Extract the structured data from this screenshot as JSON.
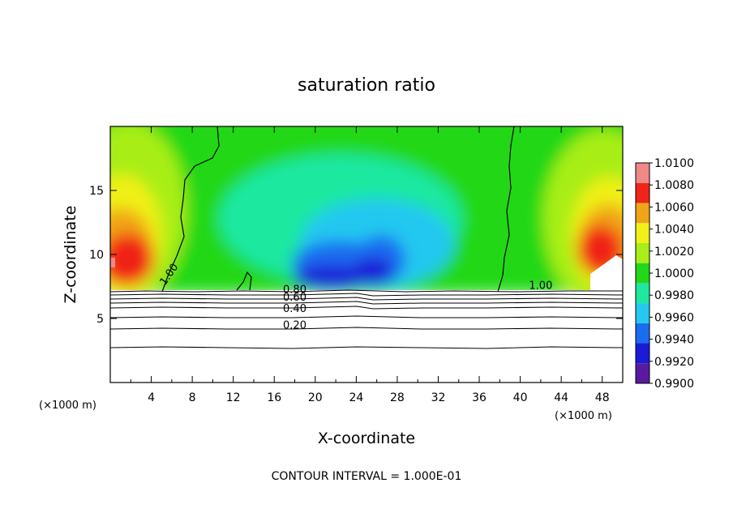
{
  "chart_data": {
    "type": "heatmap",
    "title": "saturation ratio",
    "xlabel": "X-coordinate",
    "ylabel": "Z-coordinate",
    "x_unit_left": "(×1000 m)",
    "x_unit_right": "(×1000 m)",
    "xlim": [
      0,
      50
    ],
    "ylim": [
      0,
      20
    ],
    "x_ticks": [
      4,
      8,
      12,
      16,
      20,
      24,
      28,
      32,
      36,
      40,
      44,
      48
    ],
    "x_tick_labels": [
      "4",
      "8",
      "12",
      "16",
      "20",
      "24",
      "28",
      "32",
      "36",
      "40",
      "44",
      "48"
    ],
    "y_ticks": [
      5,
      10,
      15
    ],
    "y_tick_labels": [
      "5",
      "10",
      "15"
    ],
    "colorbar": {
      "levels": [
        0.99,
        0.992,
        0.994,
        0.996,
        0.998,
        1.0,
        1.002,
        1.004,
        1.006,
        1.008,
        1.01
      ],
      "labels": [
        "0.9900",
        "0.9920",
        "0.9940",
        "0.9960",
        "0.9980",
        "1.0000",
        "1.0020",
        "1.0040",
        "1.0060",
        "1.0080",
        "1.0100"
      ],
      "colors": [
        "#5a1aa0",
        "#1a1ad8",
        "#1a6cf0",
        "#24c8f0",
        "#1ee8a0",
        "#22d818",
        "#a8ee18",
        "#f0f018",
        "#f0a418",
        "#f02418",
        "#f08888"
      ]
    },
    "contour_labels": [
      {
        "text": "1.00",
        "x": 6.0,
        "z": 8.3
      },
      {
        "text": "1.00",
        "x": 42.0,
        "z": 7.3
      },
      {
        "text": "0.80",
        "x": 18.0,
        "z": 7.0
      },
      {
        "text": "0.60",
        "x": 18.0,
        "z": 6.4
      },
      {
        "text": "0.40",
        "x": 18.0,
        "z": 5.5
      },
      {
        "text": "0.20",
        "x": 18.0,
        "z": 4.2
      }
    ],
    "contour_interval_text": "CONTOUR INTERVAL = 1.000E-01",
    "grid": false,
    "legend_position": "right"
  }
}
